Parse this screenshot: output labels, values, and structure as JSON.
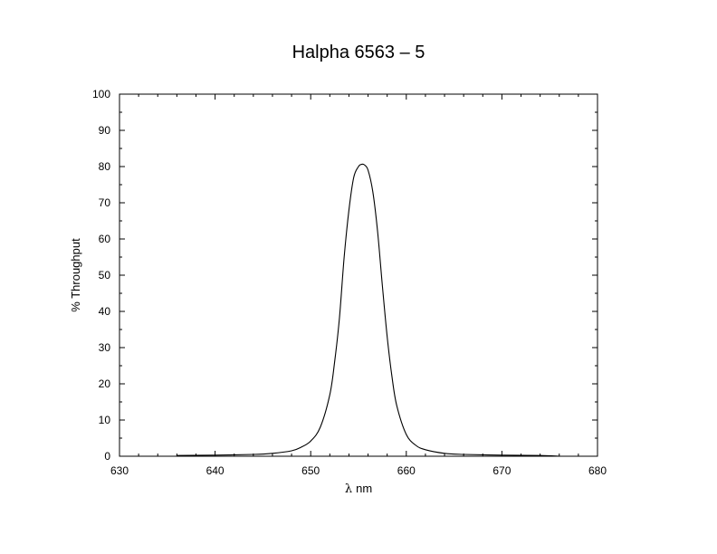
{
  "chart_data": {
    "type": "line",
    "title": "Halpha 6563 – 5",
    "xlabel_symbol": "λ",
    "xlabel_unit": "nm",
    "ylabel": "% Throughput",
    "xlim": [
      630,
      680
    ],
    "ylim": [
      0,
      100
    ],
    "xticks": [
      630,
      640,
      650,
      660,
      670,
      680
    ],
    "yticks": [
      0,
      10,
      20,
      30,
      40,
      50,
      60,
      70,
      80,
      90,
      100
    ],
    "grid": false,
    "series": [
      {
        "color": "#000000",
        "x": [
          636,
          640,
          644,
          646,
          648,
          649,
          650,
          651,
          652,
          652.5,
          653,
          653.5,
          654,
          654.5,
          655,
          655.3,
          655.6,
          656,
          656.5,
          657,
          657.5,
          658,
          658.5,
          659,
          660,
          661,
          662,
          664,
          666,
          670,
          674,
          676
        ],
        "y": [
          0.2,
          0.3,
          0.5,
          0.8,
          1.5,
          2.5,
          4.2,
          8.0,
          17.0,
          26.0,
          38.0,
          55.0,
          68.0,
          77.0,
          80.0,
          80.6,
          80.5,
          79.0,
          73.0,
          62.0,
          47.0,
          33.0,
          22.0,
          14.0,
          6.0,
          3.0,
          1.8,
          0.8,
          0.5,
          0.3,
          0.2,
          0.0
        ]
      }
    ]
  }
}
